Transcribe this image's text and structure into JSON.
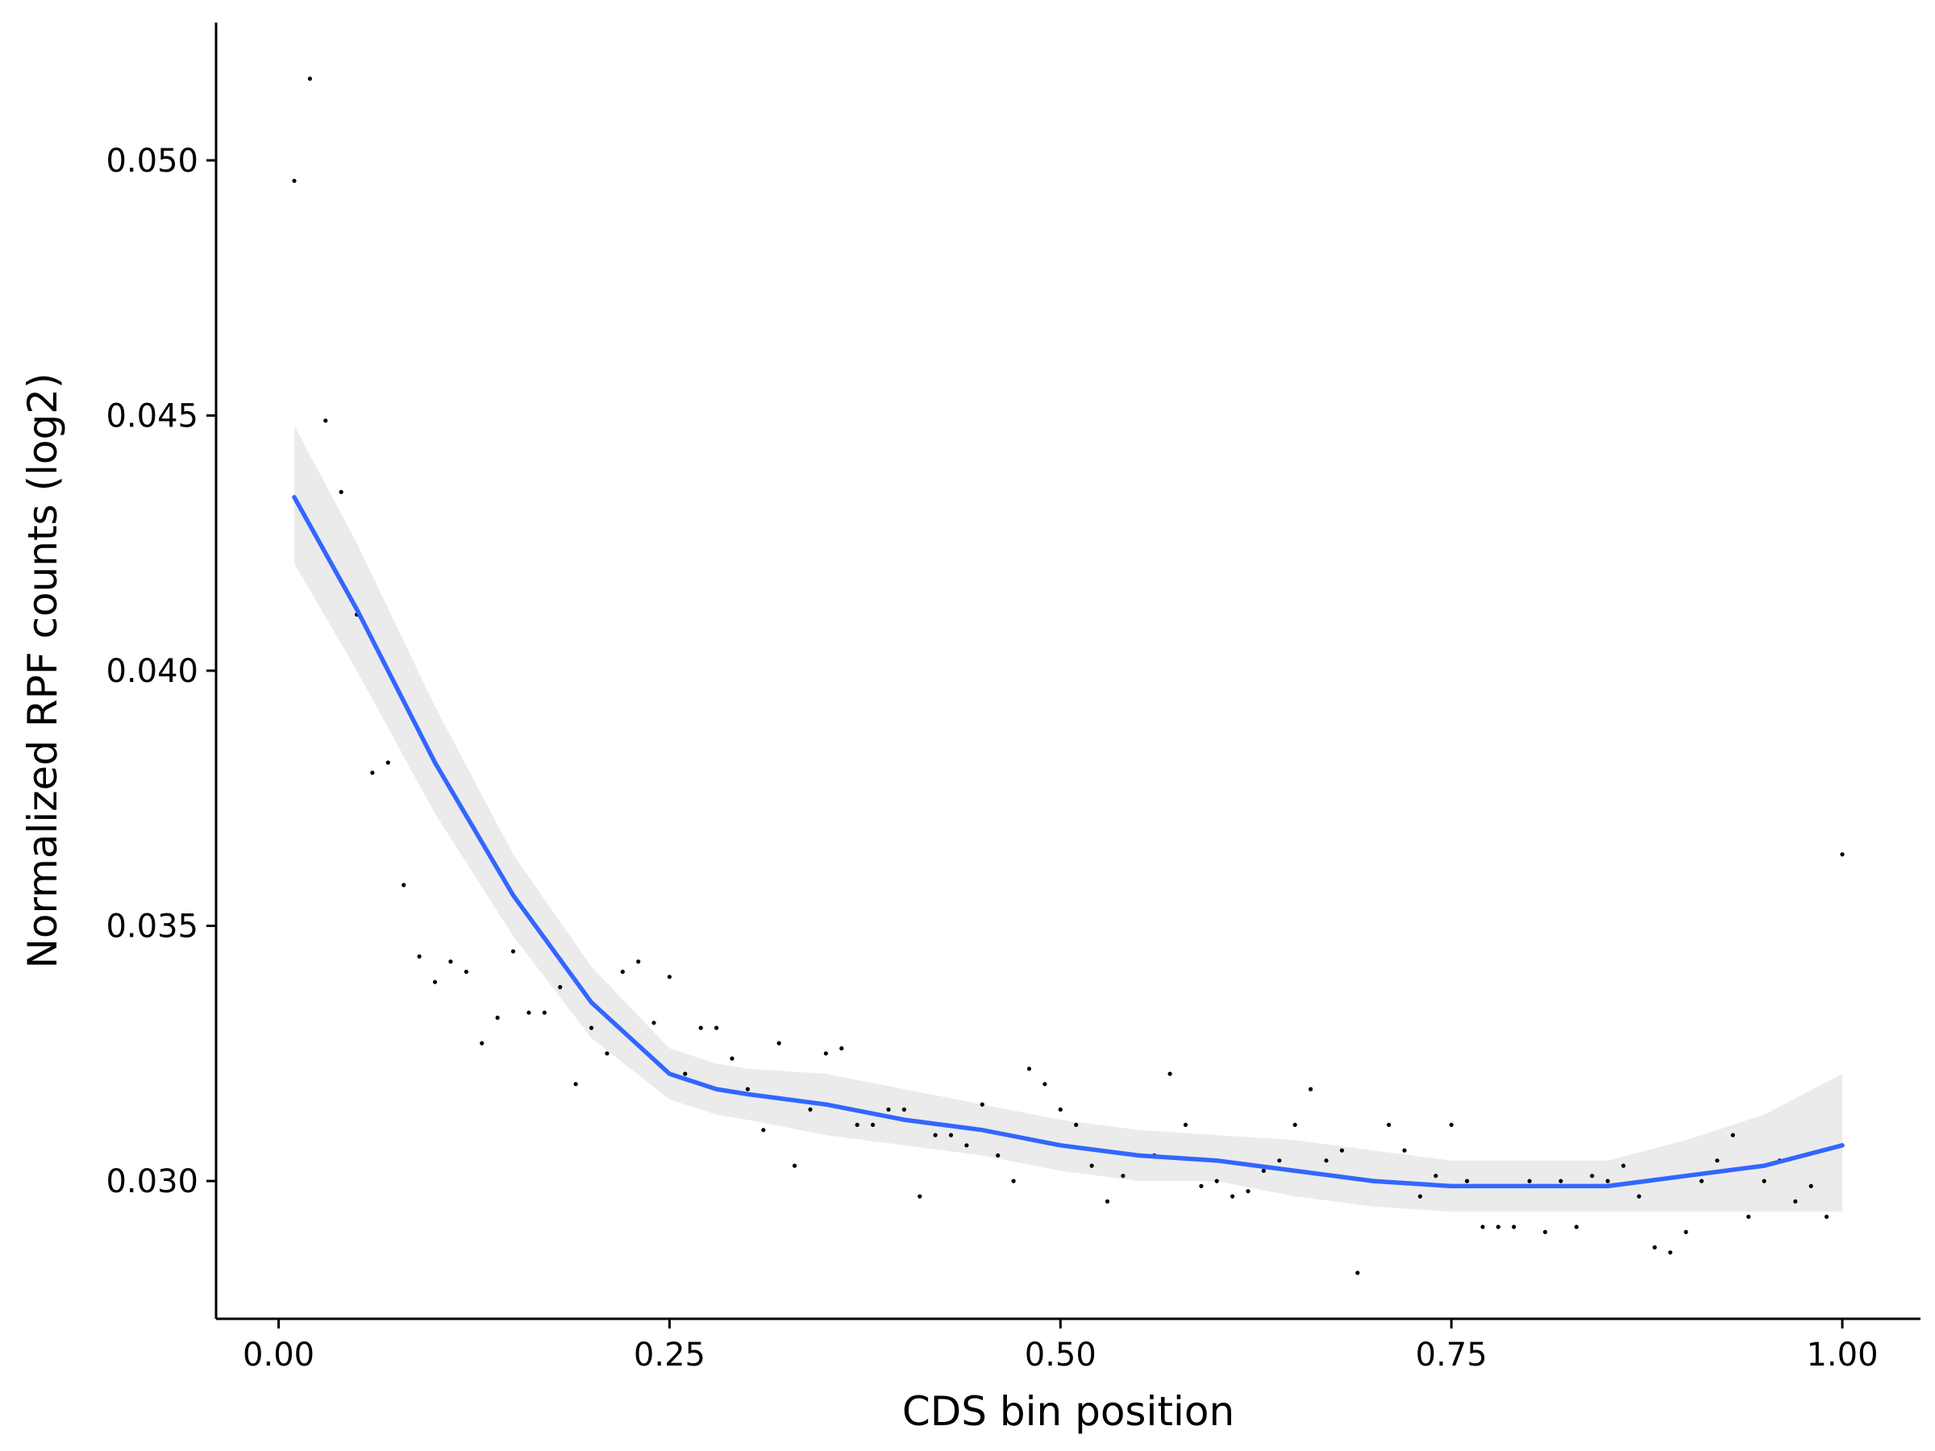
{
  "chart_data": {
    "type": "scatter",
    "title": "",
    "xlabel": "CDS bin position",
    "ylabel": "Normalized RPF counts (log2)",
    "xlim": [
      -0.04,
      1.05
    ],
    "ylim": [
      0.0273,
      0.0527
    ],
    "x_ticks": [
      0.0,
      0.25,
      0.5,
      0.75,
      1.0
    ],
    "x_tick_labels": [
      "0.00",
      "0.25",
      "0.50",
      "0.75",
      "1.00"
    ],
    "y_ticks": [
      0.03,
      0.035,
      0.04,
      0.045,
      0.05
    ],
    "y_tick_labels": [
      "0.030",
      "0.035",
      "0.040",
      "0.045",
      "0.050"
    ],
    "grid": false,
    "legend": "none",
    "colors": {
      "points": "#000000",
      "smooth_line": "#3366FF",
      "confidence_band": "#EBEBEB",
      "axis": "#000000"
    },
    "points": {
      "x": [
        0.01,
        0.02,
        0.03,
        0.04,
        0.05,
        0.06,
        0.07,
        0.08,
        0.09,
        0.1,
        0.11,
        0.12,
        0.13,
        0.14,
        0.15,
        0.16,
        0.17,
        0.18,
        0.19,
        0.2,
        0.21,
        0.22,
        0.23,
        0.24,
        0.25,
        0.26,
        0.27,
        0.28,
        0.29,
        0.3,
        0.31,
        0.32,
        0.33,
        0.34,
        0.35,
        0.36,
        0.37,
        0.38,
        0.39,
        0.4,
        0.41,
        0.42,
        0.43,
        0.44,
        0.45,
        0.46,
        0.47,
        0.48,
        0.49,
        0.5,
        0.51,
        0.52,
        0.53,
        0.54,
        0.55,
        0.56,
        0.57,
        0.58,
        0.59,
        0.6,
        0.61,
        0.62,
        0.63,
        0.64,
        0.65,
        0.66,
        0.67,
        0.68,
        0.69,
        0.7,
        0.71,
        0.72,
        0.73,
        0.74,
        0.75,
        0.76,
        0.77,
        0.78,
        0.79,
        0.8,
        0.81,
        0.82,
        0.83,
        0.84,
        0.85,
        0.86,
        0.87,
        0.88,
        0.89,
        0.9,
        0.91,
        0.92,
        0.93,
        0.94,
        0.95,
        0.96,
        0.97,
        0.98,
        0.99,
        1.0
      ],
      "y": [
        0.0496,
        0.0516,
        0.0449,
        0.0435,
        0.0411,
        0.038,
        0.0382,
        0.0358,
        0.0344,
        0.0339,
        0.0343,
        0.0341,
        0.0327,
        0.0332,
        0.0345,
        0.0333,
        0.0333,
        0.0338,
        0.0319,
        0.033,
        0.0325,
        0.0341,
        0.0343,
        0.0331,
        0.034,
        0.0321,
        0.033,
        0.033,
        0.0324,
        0.0318,
        0.031,
        0.0327,
        0.0303,
        0.0314,
        0.0325,
        0.0326,
        0.0311,
        0.0311,
        0.0314,
        0.0314,
        0.0297,
        0.0309,
        0.0309,
        0.0307,
        0.0315,
        0.0305,
        0.03,
        0.0322,
        0.0319,
        0.0314,
        0.0311,
        0.0303,
        0.0296,
        0.0301,
        0.0305,
        0.0305,
        0.0321,
        0.0311,
        0.0299,
        0.03,
        0.0297,
        0.0298,
        0.0302,
        0.0304,
        0.0311,
        0.0318,
        0.0304,
        0.0306,
        0.0282,
        0.03,
        0.0311,
        0.0306,
        0.0297,
        0.0301,
        0.0311,
        0.03,
        0.0291,
        0.0291,
        0.0291,
        0.03,
        0.029,
        0.03,
        0.0291,
        0.0301,
        0.03,
        0.0303,
        0.0297,
        0.0287,
        0.0286,
        0.029,
        0.03,
        0.0304,
        0.0309,
        0.0293,
        0.03,
        0.0304,
        0.0296,
        0.0299,
        0.0293,
        0.0364
      ]
    },
    "smooth": {
      "method": "loess",
      "x": [
        0.01,
        0.05,
        0.1,
        0.15,
        0.2,
        0.25,
        0.28,
        0.3,
        0.35,
        0.4,
        0.45,
        0.5,
        0.55,
        0.6,
        0.65,
        0.7,
        0.75,
        0.8,
        0.85,
        0.9,
        0.95,
        1.0
      ],
      "y": [
        0.0434,
        0.0412,
        0.0382,
        0.0356,
        0.0335,
        0.0321,
        0.0318,
        0.0317,
        0.0315,
        0.0312,
        0.031,
        0.0307,
        0.0305,
        0.0304,
        0.0302,
        0.03,
        0.0299,
        0.0299,
        0.0299,
        0.0301,
        0.0303,
        0.0307
      ],
      "lower": [
        0.0421,
        0.04,
        0.0372,
        0.0348,
        0.0328,
        0.0316,
        0.0313,
        0.0312,
        0.0309,
        0.0307,
        0.0305,
        0.0302,
        0.03,
        0.03,
        0.0297,
        0.0295,
        0.0294,
        0.0294,
        0.0294,
        0.0294,
        0.0294,
        0.0294
      ],
      "upper": [
        0.0448,
        0.0425,
        0.0393,
        0.0364,
        0.0342,
        0.0326,
        0.0323,
        0.0322,
        0.0321,
        0.0318,
        0.0315,
        0.0312,
        0.031,
        0.0309,
        0.0308,
        0.0306,
        0.0304,
        0.0304,
        0.0304,
        0.0308,
        0.0313,
        0.0321
      ]
    }
  }
}
